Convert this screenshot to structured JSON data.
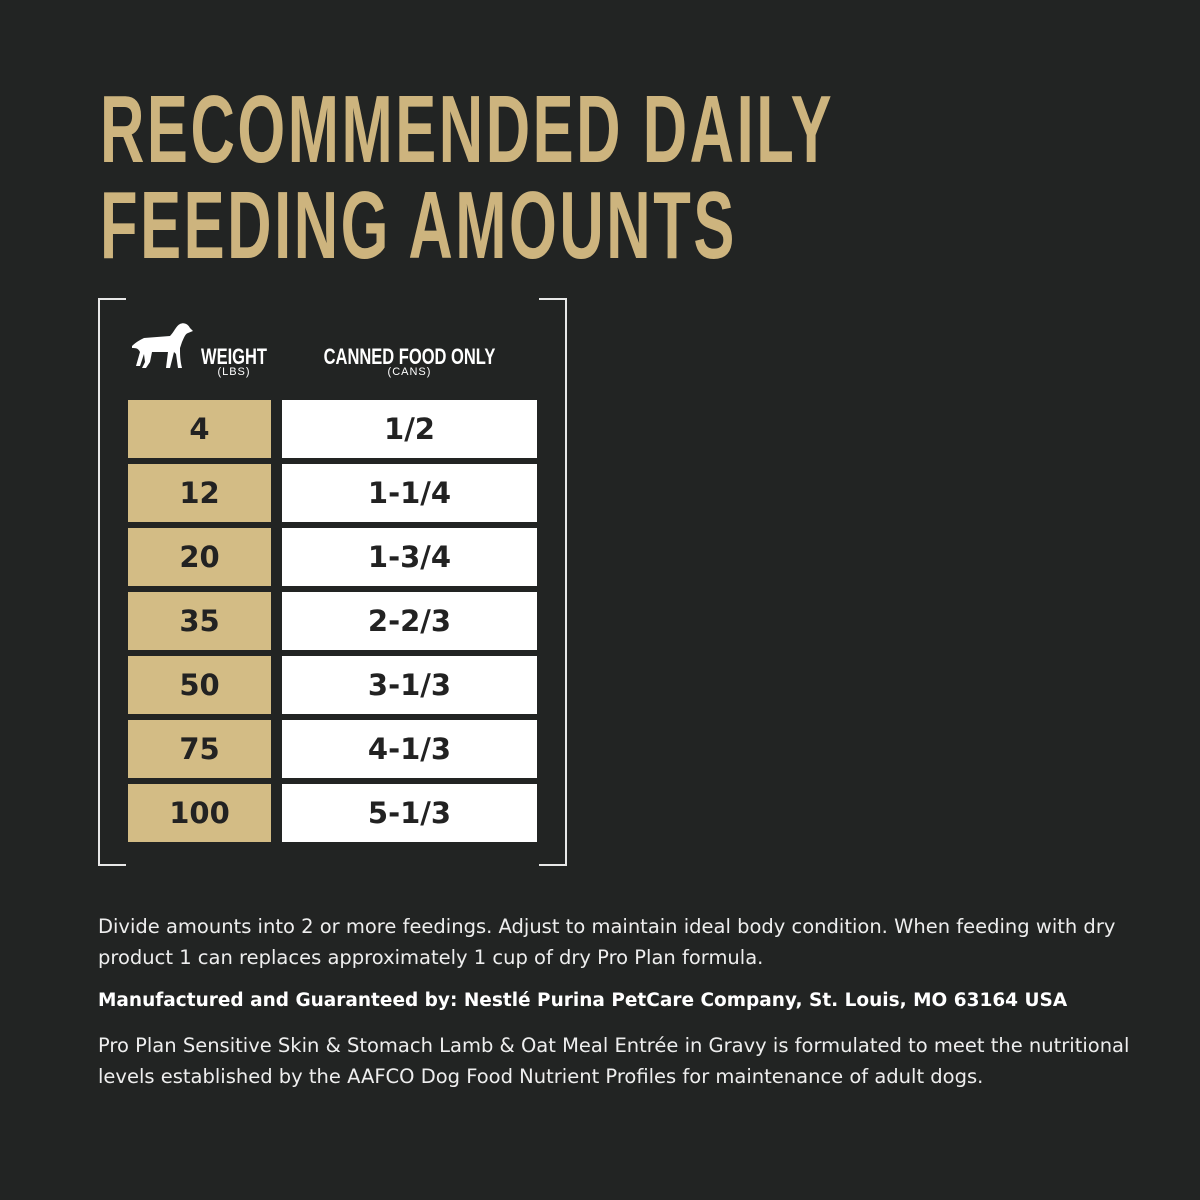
{
  "title": {
    "line1": "RECOMMENDED DAILY",
    "line2": "FEEDING AMOUNTS"
  },
  "colors": {
    "background": "#222423",
    "gold": "#d3bc85",
    "title": "#cdb47e"
  },
  "table": {
    "weight_header": "WEIGHT",
    "weight_unit": "(LBS)",
    "food_header": "CANNED FOOD ONLY",
    "food_unit": "(CANS)",
    "icon": "dog-icon",
    "rows": [
      {
        "weight": "4",
        "cans": "1/2"
      },
      {
        "weight": "12",
        "cans": "1-1/4"
      },
      {
        "weight": "20",
        "cans": "1-3/4"
      },
      {
        "weight": "35",
        "cans": "2-2/3"
      },
      {
        "weight": "50",
        "cans": "3-1/3"
      },
      {
        "weight": "75",
        "cans": "4-1/3"
      },
      {
        "weight": "100",
        "cans": "5-1/3"
      }
    ]
  },
  "notes": {
    "instructions": "Divide amounts into 2 or more feedings. Adjust to maintain ideal body condition. When feeding with dry product 1 can replaces approximately 1 cup of dry Pro Plan formula.",
    "manufacturer": "Manufactured and Guaranteed by: Nestlé Purina PetCare Company, St. Louis, MO 63164 USA",
    "aafco": "Pro Plan Sensitive Skin & Stomach Lamb & Oat Meal Entrée in Gravy is formulated to meet the nutritional levels established by the AAFCO Dog Food Nutrient Profiles for maintenance of adult dogs."
  }
}
